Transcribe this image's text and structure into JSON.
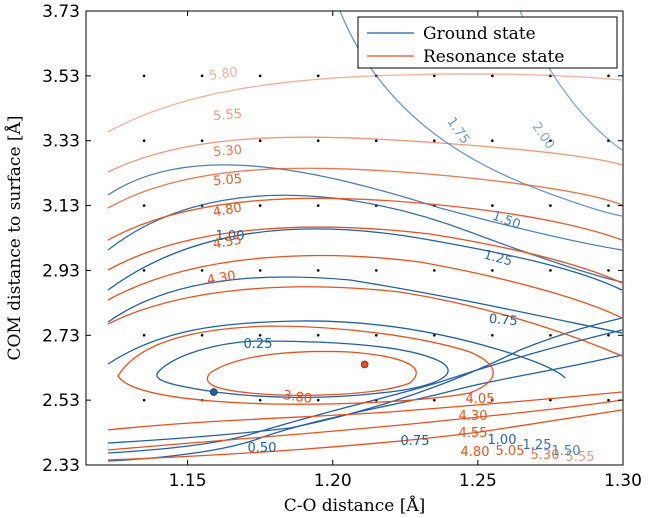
{
  "chart_data": {
    "type": "contour",
    "title": "",
    "xlabel": "C-O distance [Å]",
    "ylabel": "COM distance to surface  [Å]",
    "xlim": [
      1.115,
      1.3
    ],
    "ylim": [
      2.33,
      3.73
    ],
    "x_ticks": [
      "1.15",
      "1.20",
      "1.25",
      "1.30"
    ],
    "x_tick_values": [
      1.15,
      1.2,
      1.25,
      1.3
    ],
    "y_ticks": [
      "2.33",
      "2.53",
      "2.73",
      "2.93",
      "3.13",
      "3.33",
      "3.53",
      "3.73"
    ],
    "y_tick_values": [
      2.33,
      2.53,
      2.73,
      2.93,
      3.13,
      3.33,
      3.53,
      3.73
    ],
    "legend": {
      "placement": "top-right",
      "entries": [
        {
          "label": "Ground state",
          "color": "#1f5fa8"
        },
        {
          "label": "Resonance state",
          "color": "#e8501c"
        }
      ]
    },
    "series": [
      {
        "name": "Ground state",
        "color": "#1f5fa8",
        "levels": [
          "0.25",
          "0.50",
          "0.75",
          "1.00",
          "1.25",
          "1.50",
          "1.75",
          "2.00"
        ],
        "minimum": {
          "x": 1.159,
          "y": 2.555
        }
      },
      {
        "name": "Resonance state",
        "color": "#e8501c",
        "levels": [
          "3.80",
          "4.05",
          "4.30",
          "4.55",
          "4.80",
          "5.05",
          "5.30",
          "5.55",
          "5.80"
        ],
        "minimum": {
          "x": 1.211,
          "y": 2.64
        }
      }
    ],
    "sample_grid": {
      "x": [
        1.135,
        1.155,
        1.175,
        1.195,
        1.215,
        1.235,
        1.255,
        1.275,
        1.295
      ],
      "y": [
        2.53,
        2.73,
        2.93,
        3.13,
        3.33,
        3.53
      ]
    },
    "grid": false
  }
}
